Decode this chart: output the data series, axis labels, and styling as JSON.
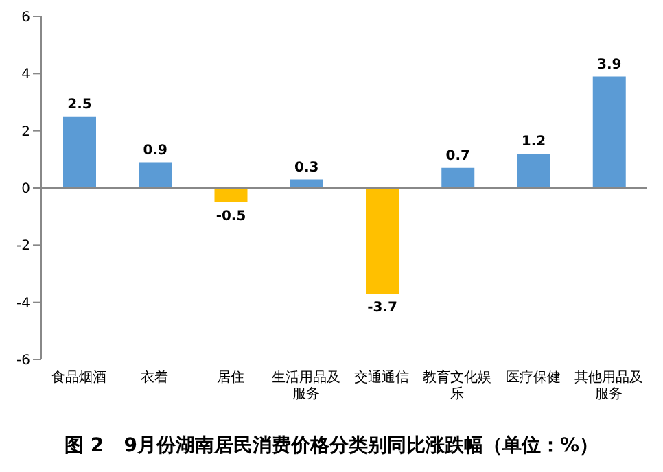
{
  "chart_data": {
    "type": "bar",
    "title": "图 2   9月份湖南居民消费价格分类别同比涨跌幅（单位：%）",
    "categories": [
      "食品烟酒",
      "衣着",
      "居住",
      "生活用品及服务",
      "交通通信",
      "教育文化娱乐",
      "医疗保健",
      "其他用品及服务"
    ],
    "values": [
      2.5,
      0.9,
      -0.5,
      0.3,
      -3.7,
      0.7,
      1.2,
      3.9
    ],
    "colors": [
      "#5b9bd5",
      "#5b9bd5",
      "#ffc000",
      "#5b9bd5",
      "#ffc000",
      "#5b9bd5",
      "#5b9bd5",
      "#5b9bd5"
    ],
    "ylim": [
      -6,
      6
    ],
    "yticks": [
      -6,
      -4,
      -2,
      0,
      2,
      4,
      6
    ],
    "data_labels": true
  }
}
